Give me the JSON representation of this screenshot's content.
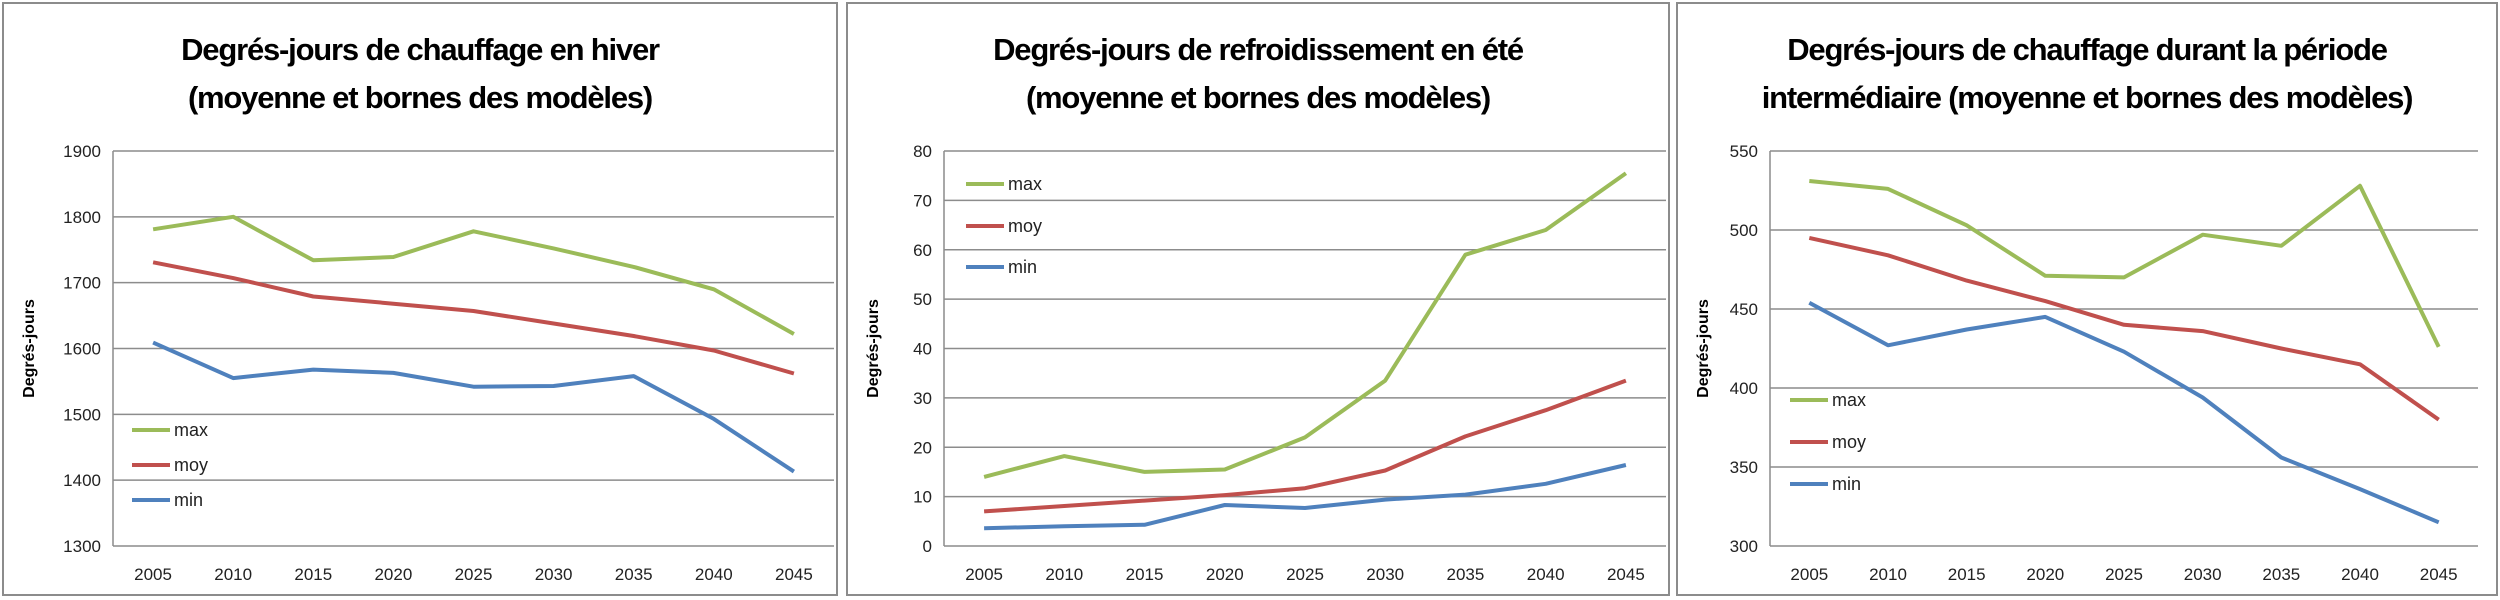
{
  "chart_data": [
    {
      "type": "line",
      "title": [
        "Degrés-jours de chauffage en hiver",
        "(moyenne et bornes des modèles)"
      ],
      "xlabel": "",
      "ylabel": "Degrés-jours",
      "x": [
        "2005",
        "2010",
        "2015",
        "2020",
        "2025",
        "2030",
        "2035",
        "2040",
        "2045"
      ],
      "ylim": [
        1300,
        1900
      ],
      "yticks": [
        1300,
        1400,
        1500,
        1600,
        1700,
        1800,
        1900
      ],
      "grid": true,
      "legend": "bottom-left",
      "series": [
        {
          "name": "max",
          "color": "#9BBB59",
          "values": [
            1781,
            1800,
            1734,
            1739,
            1778,
            1752,
            1724,
            1690,
            1622
          ]
        },
        {
          "name": "moy",
          "color": "#C0504D",
          "values": [
            1731,
            1707,
            1679,
            1668,
            1657,
            1638,
            1619,
            1597,
            1562
          ]
        },
        {
          "name": "min",
          "color": "#4F81BD",
          "values": [
            1609,
            1555,
            1568,
            1563,
            1542,
            1543,
            1558,
            1493,
            1413
          ]
        }
      ]
    },
    {
      "type": "line",
      "title": [
        "Degrés-jours de refroidissement en été",
        "(moyenne et bornes des modèles)"
      ],
      "xlabel": "",
      "ylabel": "Degrés-jours",
      "x": [
        "2005",
        "2010",
        "2015",
        "2020",
        "2025",
        "2030",
        "2035",
        "2040",
        "2045"
      ],
      "ylim": [
        0,
        80
      ],
      "yticks": [
        0,
        10,
        20,
        30,
        40,
        50,
        60,
        70,
        80
      ],
      "grid": true,
      "legend": "top-left",
      "series": [
        {
          "name": "max",
          "color": "#9BBB59",
          "values": [
            14,
            18.2,
            15,
            15.5,
            22,
            33.5,
            59,
            64,
            75.5
          ]
        },
        {
          "name": "moy",
          "color": "#C0504D",
          "values": [
            7,
            8.1,
            9.2,
            10.3,
            11.7,
            15.3,
            22.2,
            27.5,
            33.5
          ]
        },
        {
          "name": "min",
          "color": "#4F81BD",
          "values": [
            3.6,
            4,
            4.3,
            8.3,
            7.7,
            9.4,
            10.4,
            12.6,
            16.4
          ]
        }
      ]
    },
    {
      "type": "line",
      "title": [
        "Degrés-jours de chauffage durant la période",
        "intermédiaire (moyenne et bornes des modèles)"
      ],
      "xlabel": "",
      "ylabel": "Degrés-jours",
      "x": [
        "2005",
        "2010",
        "2015",
        "2020",
        "2025",
        "2030",
        "2035",
        "2040",
        "2045"
      ],
      "ylim": [
        300,
        550
      ],
      "yticks": [
        300,
        350,
        400,
        450,
        500,
        550
      ],
      "grid": true,
      "legend": "bottom-left",
      "series": [
        {
          "name": "max",
          "color": "#9BBB59",
          "values": [
            531,
            526,
            503,
            471,
            470,
            497,
            490,
            528,
            426
          ]
        },
        {
          "name": "moy",
          "color": "#C0504D",
          "values": [
            495,
            484,
            468,
            455,
            440,
            436,
            425,
            415,
            380
          ]
        },
        {
          "name": "min",
          "color": "#4F81BD",
          "values": [
            454,
            427,
            437,
            445,
            423,
            394,
            356,
            336,
            315
          ]
        }
      ]
    }
  ]
}
